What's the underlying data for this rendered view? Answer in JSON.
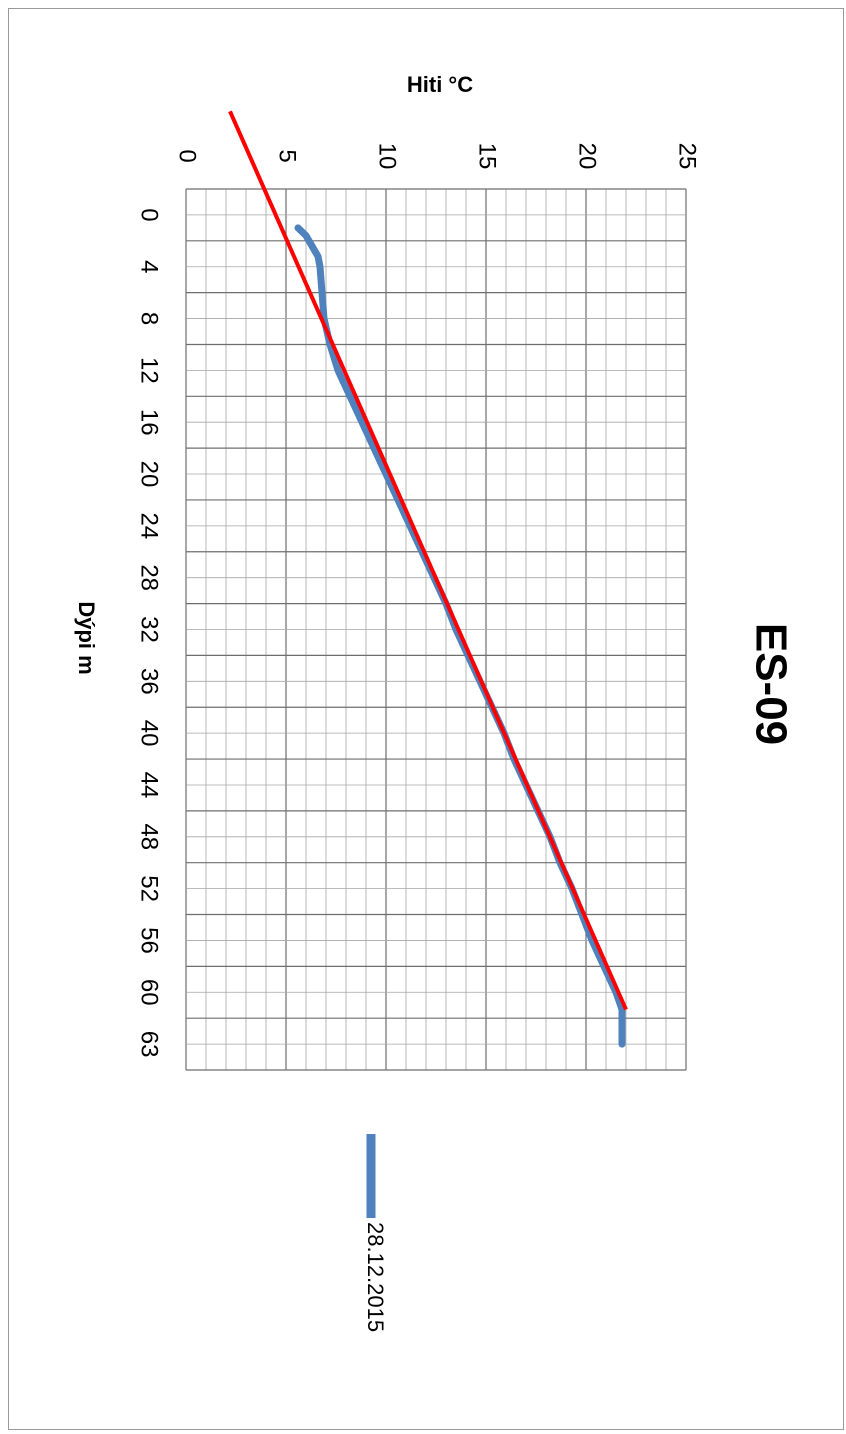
{
  "chart_data": {
    "type": "line",
    "title": "ES-09",
    "xlabel": "Hiti °C",
    "ylabel": "Dýpi m",
    "xlim": [
      0,
      25
    ],
    "ylim": [
      0,
      63
    ],
    "x_ticks": [
      "0",
      "5",
      "10",
      "15",
      "20",
      "25"
    ],
    "y_ticks": [
      "0",
      "4",
      "8",
      "12",
      "16",
      "20",
      "24",
      "28",
      "32",
      "36",
      "40",
      "44",
      "48",
      "52",
      "56",
      "60",
      "63"
    ],
    "grid": true,
    "orientation": "rotated 90° clockwise",
    "legend_position": "bottom",
    "series": [
      {
        "name": "28.12.2015",
        "color": "#4f81bd",
        "points": [
          [
            5.6,
            1.0
          ],
          [
            6.0,
            1.6
          ],
          [
            6.3,
            2.4
          ],
          [
            6.6,
            3.2
          ],
          [
            6.7,
            4.0
          ],
          [
            6.8,
            6.0
          ],
          [
            6.9,
            8.0
          ],
          [
            7.2,
            10.0
          ],
          [
            7.6,
            12.0
          ],
          [
            8.2,
            14.0
          ],
          [
            8.8,
            16.0
          ],
          [
            9.4,
            18.0
          ],
          [
            10.0,
            20.0
          ],
          [
            10.6,
            22.0
          ],
          [
            11.2,
            24.0
          ],
          [
            11.8,
            26.0
          ],
          [
            12.4,
            28.0
          ],
          [
            13.0,
            30.0
          ],
          [
            13.5,
            32.0
          ],
          [
            14.1,
            34.0
          ],
          [
            14.7,
            36.0
          ],
          [
            15.3,
            38.0
          ],
          [
            15.9,
            40.0
          ],
          [
            16.4,
            42.0
          ],
          [
            17.0,
            44.0
          ],
          [
            17.6,
            46.0
          ],
          [
            18.2,
            48.0
          ],
          [
            18.7,
            50.0
          ],
          [
            19.3,
            52.0
          ],
          [
            19.8,
            54.0
          ],
          [
            20.3,
            56.0
          ],
          [
            20.9,
            58.0
          ],
          [
            21.5,
            60.0
          ],
          [
            21.8,
            61.0
          ],
          [
            21.8,
            63.0
          ]
        ]
      }
    ],
    "trendline": {
      "color": "#ff0000",
      "points": [
        [
          2.2,
          -8.0
        ],
        [
          22.0,
          61.0
        ]
      ]
    }
  }
}
